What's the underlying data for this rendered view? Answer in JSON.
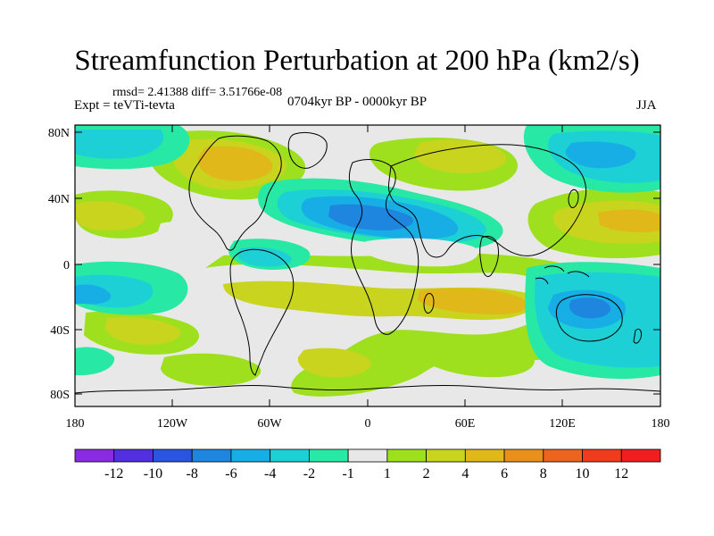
{
  "title": "Streamfunction Perturbation at 200 hPa (km2/s)",
  "stats_line": "rmsd= 2.41388 diff= 3.51766e-08",
  "experiment": "Expt = teVTi-tevta",
  "period": "0704kyr BP - 0000kyr BP",
  "season": "JJA",
  "lat_ticks": [
    "80N",
    "40N",
    "0",
    "40S",
    "80S"
  ],
  "lon_ticks": [
    "180",
    "120W",
    "60W",
    "0",
    "60E",
    "120E",
    "180"
  ],
  "colorbar": {
    "labels": [
      "-12",
      "-10",
      "-8",
      "-6",
      "-4",
      "-2",
      "-1",
      "1",
      "2",
      "4",
      "6",
      "8",
      "10",
      "12"
    ],
    "colors": [
      "#8a2be2",
      "#5230e0",
      "#2a55de",
      "#1f86e0",
      "#17aee6",
      "#1cd0d6",
      "#28e8a6",
      "#e8e8e8",
      "#9ee01e",
      "#c8d41e",
      "#e0b81a",
      "#e8901c",
      "#ec6520",
      "#ee3c1c",
      "#f01e1e"
    ]
  },
  "palette": {
    "neutral": "#e8e8e8",
    "green_pos": "#9ee01e",
    "yellow_pos": "#c8d41e",
    "orange_pos": "#e0b81a",
    "dark_orange_pos": "#e8901c",
    "light_neg": "#28e8a6",
    "teal_neg": "#1cd0d6",
    "cyan_neg": "#17aee6",
    "blue_neg": "#1f86e0"
  }
}
